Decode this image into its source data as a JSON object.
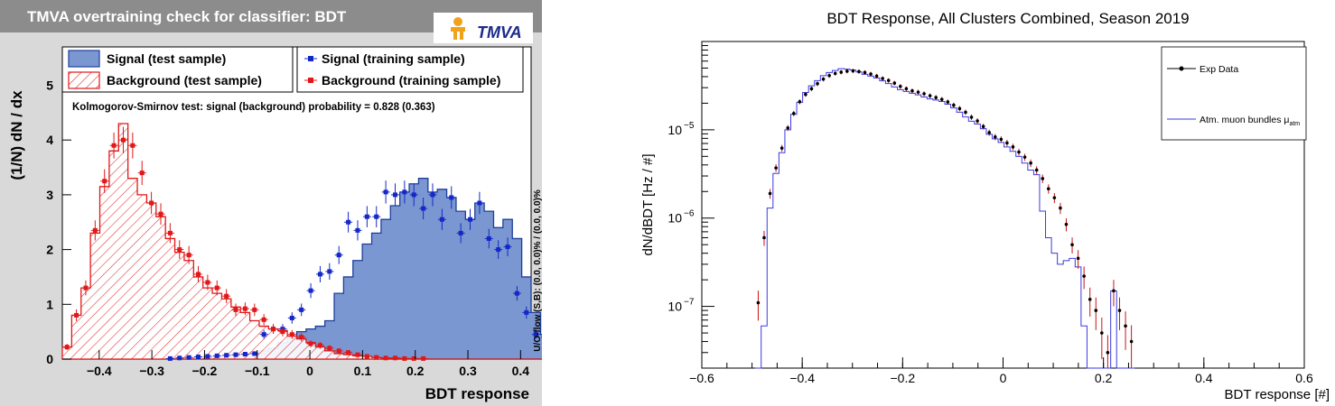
{
  "chart_data": [
    {
      "type": "histogram",
      "title": "TMVA overtraining check for classifier: BDT",
      "logo_text": "TMVA",
      "xlabel": "BDT response",
      "ylabel": "(1/N) dN / dx",
      "xlim": [
        -0.47,
        0.42
      ],
      "ylim": [
        0,
        5.7
      ],
      "xticks": [
        -0.4,
        -0.3,
        -0.2,
        -0.1,
        0,
        0.1,
        0.2,
        0.3,
        0.4
      ],
      "xtick_labels": [
        "−0.4",
        "−0.3",
        "−0.2",
        "−0.1",
        "0",
        "0.1",
        "0.2",
        "0.3",
        "0.4"
      ],
      "yticks": [
        0,
        1,
        2,
        3,
        4,
        5
      ],
      "ytick_labels": [
        "0",
        "1",
        "2",
        "3",
        "4",
        "5"
      ],
      "bin_edges_start": -0.47,
      "bin_width": 0.0178,
      "legend": {
        "signal_test": "Signal (test sample)",
        "signal_train": "Signal (training sample)",
        "background_test": "Background (test sample)",
        "background_train": "Background (training sample)"
      },
      "ks_text": "Kolmogorov-Smirnov test: signal (background) probability = 0.828 (0.363)",
      "overflow_text": "U/O-flow (S,B): (0.0, 0.0)% / (0.0, 0.0)%",
      "colors": {
        "signal_fill": "#7b97d1",
        "signal_line": "#1e3f9a",
        "signal_marker": "#1428c8",
        "background": "#e01818"
      },
      "series": [
        {
          "name": "Signal (test sample)",
          "values": [
            0,
            0,
            0,
            0,
            0,
            0,
            0,
            0,
            0,
            0,
            0,
            0.01,
            0.02,
            0.02,
            0.03,
            0.03,
            0.04,
            0.05,
            0.07,
            0.09,
            0.12,
            0.15,
            0.2,
            0.3,
            0.4,
            0.5,
            0.55,
            0.6,
            0.7,
            1.2,
            1.5,
            1.8,
            2.1,
            2.3,
            2.55,
            2.8,
            3.05,
            3.2,
            3.3,
            3.05,
            3.1,
            2.95,
            2.7,
            2.55,
            2.85,
            2.7,
            2.4,
            2.55,
            2.2,
            1.5,
            0.85,
            0.45
          ]
        },
        {
          "name": "Background (test sample)",
          "values": [
            0.22,
            0.8,
            1.3,
            2.3,
            3.15,
            3.8,
            4.3,
            3.3,
            3.0,
            2.85,
            2.6,
            2.2,
            1.95,
            1.8,
            1.5,
            1.3,
            1.2,
            1.1,
            0.95,
            0.85,
            0.7,
            0.6,
            0.55,
            0.52,
            0.42,
            0.37,
            0.3,
            0.22,
            0.15,
            0.1,
            0.08,
            0.06,
            0.05,
            0.03,
            0.02,
            0.02,
            0.01,
            0.01,
            0.005,
            0,
            0,
            0,
            0,
            0,
            0,
            0,
            0,
            0,
            0,
            0,
            0,
            0
          ]
        },
        {
          "name": "Signal (training sample)",
          "values": [
            0,
            0,
            0,
            0,
            0,
            0,
            0,
            0,
            0,
            0,
            0,
            0.01,
            0.02,
            0.03,
            0.04,
            0.05,
            0.06,
            0.07,
            0.08,
            0.09,
            0.1,
            0.45,
            0.55,
            0.55,
            0.75,
            0.9,
            1.25,
            1.55,
            1.6,
            1.9,
            2.5,
            2.35,
            2.6,
            2.6,
            3.05,
            3.0,
            3.05,
            3.0,
            2.75,
            3.0,
            2.55,
            2.95,
            2.3,
            2.55,
            2.85,
            2.2,
            2.0,
            2.05,
            1.2,
            0.85,
            0.45,
            0.4
          ]
        },
        {
          "name": "Background (training sample)",
          "values": [
            0.22,
            0.8,
            1.3,
            2.35,
            3.25,
            3.9,
            4.0,
            3.9,
            3.4,
            2.85,
            2.65,
            2.3,
            2.0,
            1.9,
            1.55,
            1.4,
            1.3,
            1.15,
            0.9,
            0.92,
            0.9,
            0.72,
            0.55,
            0.5,
            0.45,
            0.4,
            0.28,
            0.25,
            0.2,
            0.15,
            0.12,
            0.08,
            0.05,
            0.03,
            0.02,
            0.02,
            0.01,
            0.01,
            0.01,
            0,
            0,
            0,
            0,
            0,
            0,
            0,
            0,
            0,
            0,
            0,
            0,
            0
          ]
        }
      ]
    },
    {
      "type": "histogram",
      "title": "BDT Response, All Clusters Combined, Season 2019",
      "xlabel": "BDT response [#]",
      "ylabel": "dN/dBDT [Hz / #]",
      "yscale": "log",
      "xlim": [
        -0.6,
        0.6
      ],
      "ylim": [
        2e-08,
        0.0001
      ],
      "xticks": [
        -0.6,
        -0.4,
        -0.2,
        0,
        0.2,
        0.4,
        0.6
      ],
      "xtick_labels": [
        "−0.6",
        "−0.4",
        "−0.2",
        "0",
        "0.2",
        "0.4",
        "0.6"
      ],
      "yticks": [
        1e-07,
        1e-06,
        1e-05
      ],
      "ytick_labels": [
        "10",
        "10",
        "10"
      ],
      "ytick_exponents": [
        "−7",
        "−6",
        "−5"
      ],
      "bin_edges_start": -0.4936,
      "bin_width": 0.0118,
      "legend": {
        "data": "Exp Data",
        "mc": "Atm. muon bundles μ",
        "mc_subscript": "atm"
      },
      "colors": {
        "data": "#000000",
        "mc": "#3a3ae0",
        "error": "#c81414"
      },
      "series": [
        {
          "name": "Exp Data",
          "values": [
            0.11,
            0.6,
            1.9,
            3.7,
            6.2,
            10.5,
            15.3,
            20.8,
            25.2,
            29.2,
            33.3,
            37.5,
            41.1,
            43.5,
            45,
            46.2,
            46.5,
            45.7,
            44.6,
            42.8,
            40.6,
            38.1,
            36.2,
            33.8,
            31,
            29.2,
            27.6,
            26.7,
            25.6,
            24.3,
            23.2,
            22.1,
            20.7,
            19,
            17.4,
            15.8,
            13.9,
            12.6,
            10.9,
            9.3,
            8.3,
            7.8,
            7.1,
            6.4,
            5.6,
            4.9,
            4.2,
            3.5,
            2.8,
            2.15,
            1.7,
            1.3,
            0.85,
            0.5,
            0.35,
            0.22,
            0.12,
            0.09,
            0.05,
            0.03,
            0.15,
            0.09,
            0.06,
            0.04
          ]
        },
        {
          "name": "Atm. muon bundles μatm",
          "values": [
            0.02,
            0.06,
            1.3,
            3.2,
            5.5,
            10,
            15,
            20.5,
            26.5,
            31.5,
            36,
            41,
            44.5,
            47,
            49.2,
            48.6,
            47.5,
            45.2,
            42.5,
            40.5,
            38.6,
            35.8,
            33.4,
            30.6,
            28.5,
            27.2,
            25.9,
            24.9,
            23.5,
            22.4,
            21.7,
            20.9,
            19.5,
            17.7,
            15.8,
            14,
            12.5,
            11.6,
            10.3,
            8.9,
            7.9,
            7.2,
            6.4,
            5.7,
            5,
            4.2,
            3.5,
            3.1,
            1.2,
            0.6,
            0.4,
            0.3,
            0.33,
            0.35,
            0.28,
            0.06,
            0.02,
            0.01,
            0.02,
            0.01,
            0.15,
            0.01,
            0.005,
            0.002
          ]
        }
      ]
    }
  ]
}
